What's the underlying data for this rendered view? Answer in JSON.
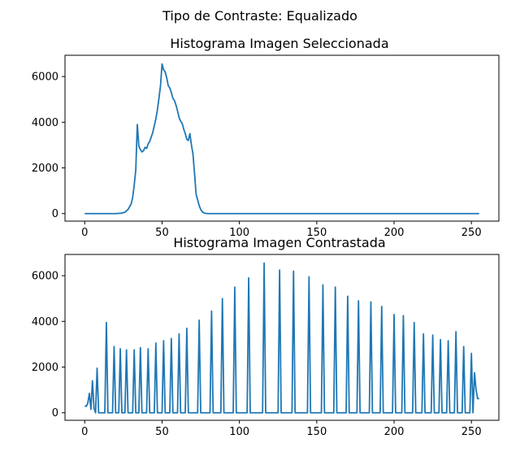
{
  "figure": {
    "suptitle": "Tipo de Contraste: Equalizado"
  },
  "chart_data": [
    {
      "type": "line",
      "title": "Histograma Imagen Seleccionada",
      "xlabel": "",
      "ylabel": "",
      "xlim": [
        -12.75,
        267.75
      ],
      "ylim": [
        -330,
        6930
      ],
      "xticks": [
        0,
        50,
        100,
        150,
        200,
        250
      ],
      "yticks": [
        0,
        2000,
        4000,
        6000
      ],
      "grid": false,
      "line_color": "#1f77b4",
      "series": [
        {
          "points": [
            [
              0,
              0
            ],
            [
              10,
              0
            ],
            [
              20,
              0
            ],
            [
              24,
              20
            ],
            [
              26,
              60
            ],
            [
              28,
              180
            ],
            [
              30,
              420
            ],
            [
              31,
              700
            ],
            [
              32,
              1250
            ],
            [
              33,
              1900
            ],
            [
              34,
              3900
            ],
            [
              35,
              2950
            ],
            [
              36,
              2800
            ],
            [
              37,
              2700
            ],
            [
              38,
              2750
            ],
            [
              39,
              2900
            ],
            [
              40,
              2850
            ],
            [
              41,
              3050
            ],
            [
              42,
              3150
            ],
            [
              43,
              3350
            ],
            [
              44,
              3550
            ],
            [
              45,
              3850
            ],
            [
              46,
              4150
            ],
            [
              47,
              4550
            ],
            [
              48,
              5050
            ],
            [
              49,
              5600
            ],
            [
              50,
              6550
            ],
            [
              51,
              6300
            ],
            [
              52,
              6200
            ],
            [
              53,
              5950
            ],
            [
              54,
              5600
            ],
            [
              55,
              5500
            ],
            [
              56,
              5300
            ],
            [
              57,
              5050
            ],
            [
              58,
              4950
            ],
            [
              59,
              4750
            ],
            [
              60,
              4500
            ],
            [
              61,
              4200
            ],
            [
              62,
              4050
            ],
            [
              63,
              3950
            ],
            [
              64,
              3700
            ],
            [
              65,
              3500
            ],
            [
              66,
              3250
            ],
            [
              67,
              3200
            ],
            [
              68,
              3500
            ],
            [
              69,
              3000
            ],
            [
              70,
              2600
            ],
            [
              71,
              1750
            ],
            [
              72,
              850
            ],
            [
              73,
              600
            ],
            [
              74,
              350
            ],
            [
              75,
              180
            ],
            [
              76,
              80
            ],
            [
              77,
              30
            ],
            [
              78,
              10
            ],
            [
              80,
              0
            ],
            [
              100,
              0
            ],
            [
              150,
              0
            ],
            [
              200,
              0
            ],
            [
              255,
              0
            ]
          ]
        }
      ]
    },
    {
      "type": "line",
      "title": "Histograma Imagen Contrastada",
      "xlabel": "",
      "ylabel": "",
      "xlim": [
        -12.75,
        267.75
      ],
      "ylim": [
        -330,
        6930
      ],
      "xticks": [
        0,
        50,
        100,
        150,
        200,
        250
      ],
      "yticks": [
        0,
        2000,
        4000,
        6000
      ],
      "grid": false,
      "line_color": "#1f77b4",
      "series": [
        {
          "points": [
            [
              0,
              300
            ],
            [
              1,
              280
            ],
            [
              2,
              420
            ],
            [
              3,
              850
            ],
            [
              4,
              150
            ],
            [
              5,
              1400
            ],
            [
              6,
              200
            ],
            [
              7,
              0
            ],
            [
              8,
              1950
            ],
            [
              9,
              0
            ],
            [
              13,
              0
            ],
            [
              14,
              3950
            ],
            [
              15,
              0
            ],
            [
              18,
              0
            ],
            [
              19,
              2900
            ],
            [
              20,
              0
            ],
            [
              22,
              0
            ],
            [
              23,
              2800
            ],
            [
              24,
              0
            ],
            [
              26,
              0
            ],
            [
              27,
              2750
            ],
            [
              28,
              0
            ],
            [
              31,
              0
            ],
            [
              32,
              2750
            ],
            [
              33,
              0
            ],
            [
              35,
              0
            ],
            [
              36,
              2850
            ],
            [
              37,
              0
            ],
            [
              40,
              0
            ],
            [
              41,
              2800
            ],
            [
              42,
              0
            ],
            [
              45,
              0
            ],
            [
              46,
              3050
            ],
            [
              47,
              0
            ],
            [
              50,
              0
            ],
            [
              51,
              3150
            ],
            [
              52,
              0
            ],
            [
              55,
              0
            ],
            [
              56,
              3250
            ],
            [
              57,
              0
            ],
            [
              60,
              0
            ],
            [
              61,
              3450
            ],
            [
              62,
              0
            ],
            [
              65,
              0
            ],
            [
              66,
              3700
            ],
            [
              67,
              0
            ],
            [
              73,
              0
            ],
            [
              74,
              4050
            ],
            [
              75,
              0
            ],
            [
              81,
              0
            ],
            [
              82,
              4450
            ],
            [
              83,
              0
            ],
            [
              88,
              0
            ],
            [
              89,
              5000
            ],
            [
              90,
              0
            ],
            [
              96,
              0
            ],
            [
              97,
              5500
            ],
            [
              98,
              0
            ],
            [
              105,
              0
            ],
            [
              106,
              5900
            ],
            [
              107,
              0
            ],
            [
              115,
              0
            ],
            [
              116,
              6550
            ],
            [
              117,
              0
            ],
            [
              125,
              0
            ],
            [
              126,
              6250
            ],
            [
              127,
              0
            ],
            [
              134,
              0
            ],
            [
              135,
              6200
            ],
            [
              136,
              0
            ],
            [
              144,
              0
            ],
            [
              145,
              5950
            ],
            [
              146,
              0
            ],
            [
              153,
              0
            ],
            [
              154,
              5600
            ],
            [
              155,
              0
            ],
            [
              161,
              0
            ],
            [
              162,
              5500
            ],
            [
              163,
              0
            ],
            [
              169,
              0
            ],
            [
              170,
              5100
            ],
            [
              171,
              0
            ],
            [
              176,
              0
            ],
            [
              177,
              4900
            ],
            [
              178,
              0
            ],
            [
              184,
              0
            ],
            [
              185,
              4850
            ],
            [
              186,
              0
            ],
            [
              191,
              0
            ],
            [
              192,
              4650
            ],
            [
              193,
              0
            ],
            [
              199,
              0
            ],
            [
              200,
              4300
            ],
            [
              201,
              0
            ],
            [
              205,
              0
            ],
            [
              206,
              4250
            ],
            [
              207,
              0
            ],
            [
              212,
              0
            ],
            [
              213,
              3950
            ],
            [
              214,
              0
            ],
            [
              218,
              0
            ],
            [
              219,
              3450
            ],
            [
              220,
              0
            ],
            [
              224,
              0
            ],
            [
              225,
              3400
            ],
            [
              226,
              0
            ],
            [
              229,
              0
            ],
            [
              230,
              3200
            ],
            [
              231,
              0
            ],
            [
              234,
              0
            ],
            [
              235,
              3150
            ],
            [
              236,
              0
            ],
            [
              239,
              0
            ],
            [
              240,
              3550
            ],
            [
              241,
              0
            ],
            [
              244,
              0
            ],
            [
              245,
              2900
            ],
            [
              246,
              0
            ],
            [
              249,
              0
            ],
            [
              250,
              2600
            ],
            [
              251,
              0
            ],
            [
              252,
              1750
            ],
            [
              253,
              1000
            ],
            [
              254,
              620
            ],
            [
              255,
              620
            ]
          ]
        }
      ]
    }
  ]
}
